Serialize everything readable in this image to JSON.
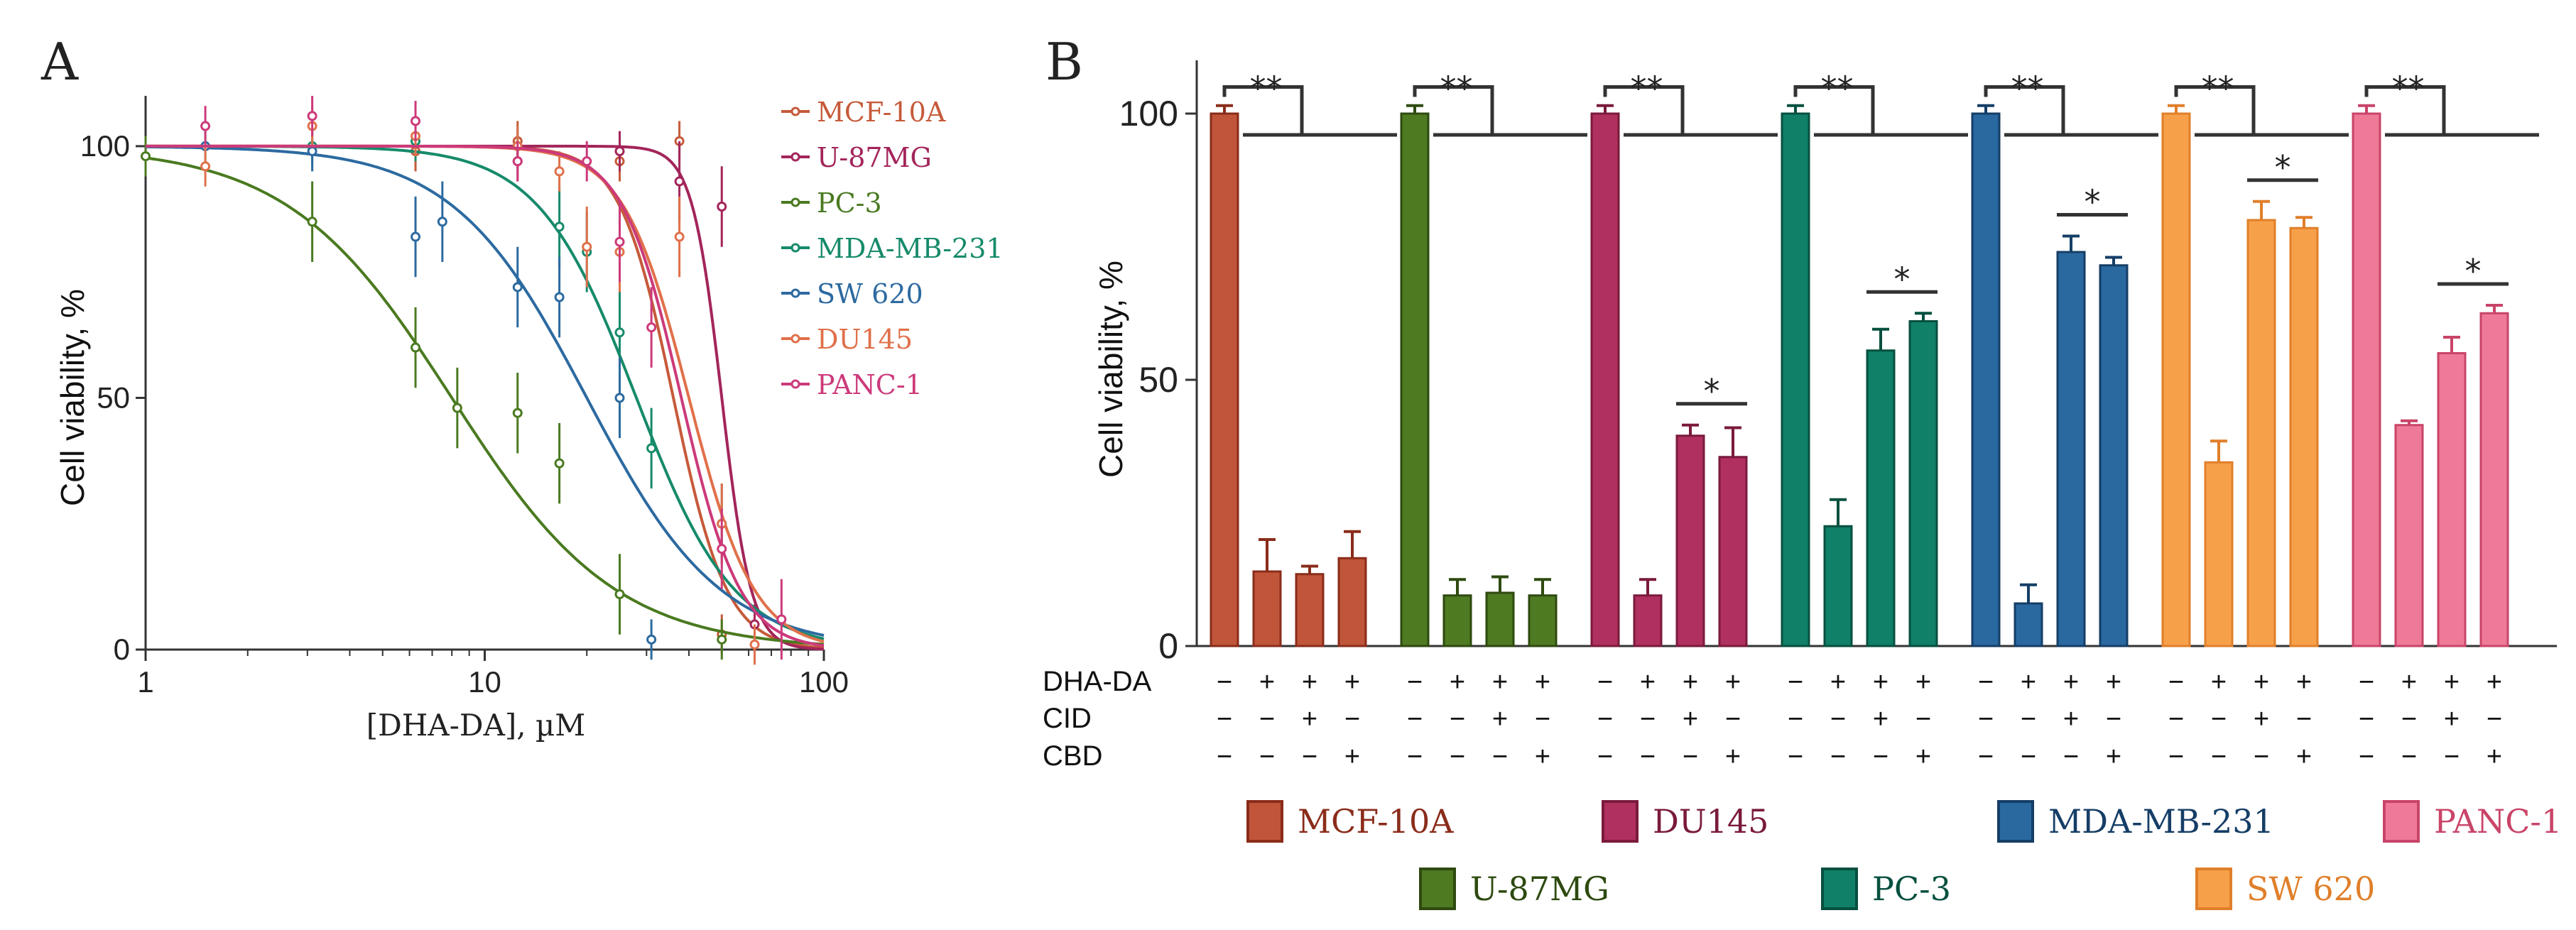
{
  "panels": {
    "a_label": "A",
    "b_label": "B"
  },
  "chart_data": [
    {
      "type": "line",
      "panel": "A",
      "xlabel": "[DHA-DA], µM",
      "ylabel": "Cell viability, %",
      "xscale": "log",
      "xlim": [
        1,
        100
      ],
      "ylim": [
        0,
        110
      ],
      "x_ticks": [
        "1",
        "10",
        "100"
      ],
      "y_ticks": [
        "0",
        "50",
        "100"
      ],
      "legend_position": "right",
      "series": [
        {
          "name": "MCF-10A",
          "color": "#c65a3a",
          "ic50": 36,
          "hill": 5.5,
          "points": [
            [
              6.25,
              99
            ],
            [
              12.5,
              101
            ],
            [
              25,
              97
            ],
            [
              37.5,
              101
            ],
            [
              50,
              3
            ]
          ]
        },
        {
          "name": "U-87MG",
          "color": "#a3255a",
          "ic50": 50,
          "hill": 10,
          "points": [
            [
              12.5,
              97
            ],
            [
              25,
              99
            ],
            [
              37.5,
              93
            ],
            [
              50,
              88
            ],
            [
              62.5,
              5
            ]
          ]
        },
        {
          "name": "PC-3",
          "color": "#4a7a20",
          "ic50": 8,
          "hill": 1.8,
          "points": [
            [
              1,
              98
            ],
            [
              3.1,
              85
            ],
            [
              6.25,
              60
            ],
            [
              8.3,
              48
            ],
            [
              12.5,
              47
            ],
            [
              16.6,
              37
            ],
            [
              25,
              11
            ],
            [
              50,
              2
            ]
          ]
        },
        {
          "name": "MDA-MB-231",
          "color": "#168a6a",
          "ic50": 28,
          "hill": 3,
          "points": [
            [
              3.1,
              100
            ],
            [
              6.25,
              101
            ],
            [
              12.5,
              100
            ],
            [
              16.6,
              84
            ],
            [
              20,
              79
            ],
            [
              25,
              63
            ],
            [
              31,
              40
            ],
            [
              50,
              25
            ]
          ]
        },
        {
          "name": "SW 620",
          "color": "#2c6aa0",
          "ic50": 20,
          "hill": 2.2,
          "points": [
            [
              1.5,
              100
            ],
            [
              3.1,
              99
            ],
            [
              6.25,
              82
            ],
            [
              7.5,
              85
            ],
            [
              12.5,
              72
            ],
            [
              16.6,
              70
            ],
            [
              25,
              50
            ],
            [
              31,
              2
            ]
          ]
        },
        {
          "name": "DU145",
          "color": "#e0704a",
          "ic50": 40,
          "hill": 4.5,
          "points": [
            [
              1.5,
              96
            ],
            [
              3.1,
              104
            ],
            [
              6.25,
              102
            ],
            [
              12.5,
              100
            ],
            [
              16.6,
              95
            ],
            [
              20,
              80
            ],
            [
              25,
              79
            ],
            [
              37.5,
              82
            ],
            [
              50,
              25
            ],
            [
              62.5,
              1
            ]
          ]
        },
        {
          "name": "PANC-1",
          "color": "#cc3a7a",
          "ic50": 38,
          "hill": 5,
          "points": [
            [
              1.5,
              104
            ],
            [
              3.1,
              106
            ],
            [
              6.25,
              105
            ],
            [
              12.5,
              97
            ],
            [
              20,
              97
            ],
            [
              25,
              81
            ],
            [
              31,
              64
            ],
            [
              50,
              20
            ],
            [
              75,
              6
            ]
          ]
        }
      ]
    },
    {
      "type": "bar",
      "panel": "B",
      "ylabel": "Cell viability, %",
      "ylim": [
        0,
        110
      ],
      "y_ticks": [
        "0",
        "50",
        "100"
      ],
      "conditions": {
        "rows": [
          {
            "label": "DHA-DA",
            "values": [
              "−",
              "+",
              "+",
              "+"
            ]
          },
          {
            "label": "CID",
            "values": [
              "−",
              "−",
              "+",
              "−"
            ]
          },
          {
            "label": "CBD",
            "values": [
              "−",
              "−",
              "−",
              "+"
            ]
          }
        ]
      },
      "significance": {
        "double": "**",
        "single": "*"
      },
      "groups": [
        {
          "name": "MCF-10A",
          "fill": "#c0553a",
          "stroke": "#8a2c1a",
          "values": [
            100,
            14,
            13.5,
            16.5
          ],
          "errors": [
            1.5,
            6,
            1.5,
            5
          ],
          "single_pair": false
        },
        {
          "name": "U-87MG",
          "fill": "#4e7a22",
          "stroke": "#2e4a10",
          "values": [
            100,
            9.5,
            10,
            9.5
          ],
          "errors": [
            1.5,
            3,
            3,
            3
          ],
          "single_pair": false
        },
        {
          "name": "DU145",
          "fill": "#b03060",
          "stroke": "#7a1a3c",
          "values": [
            100,
            9.5,
            39.5,
            35.5
          ],
          "errors": [
            1.5,
            3,
            2,
            5.5
          ],
          "single_pair": true
        },
        {
          "name": "PC-3",
          "fill": "#108068",
          "stroke": "#07503f",
          "values": [
            100,
            22.5,
            55.5,
            61
          ],
          "errors": [
            1.5,
            5,
            4,
            1.5
          ],
          "single_pair": true
        },
        {
          "name": "MDA-MB-231",
          "fill": "#2a68a0",
          "stroke": "#153e66",
          "values": [
            100,
            8,
            74,
            71.5
          ],
          "errors": [
            1.5,
            3.5,
            3,
            1.5
          ],
          "single_pair": true
        },
        {
          "name": "SW 620",
          "fill": "#f7a04a",
          "stroke": "#e07f2a",
          "values": [
            100,
            34.5,
            80,
            78.5
          ],
          "errors": [
            1.5,
            4,
            3.5,
            2
          ],
          "single_pair": true
        },
        {
          "name": "PANC-1",
          "fill": "#ef7a98",
          "stroke": "#c94468",
          "values": [
            100,
            41.5,
            55,
            62.5
          ],
          "errors": [
            1.5,
            0.8,
            3,
            1.5
          ],
          "single_pair": true
        }
      ],
      "legend": {
        "position": "bottom",
        "rows": [
          [
            "MCF-10A",
            "DU145",
            "MDA-MB-231",
            "PANC-1"
          ],
          [
            "U-87MG",
            "PC-3",
            "SW 620"
          ]
        ]
      }
    }
  ]
}
